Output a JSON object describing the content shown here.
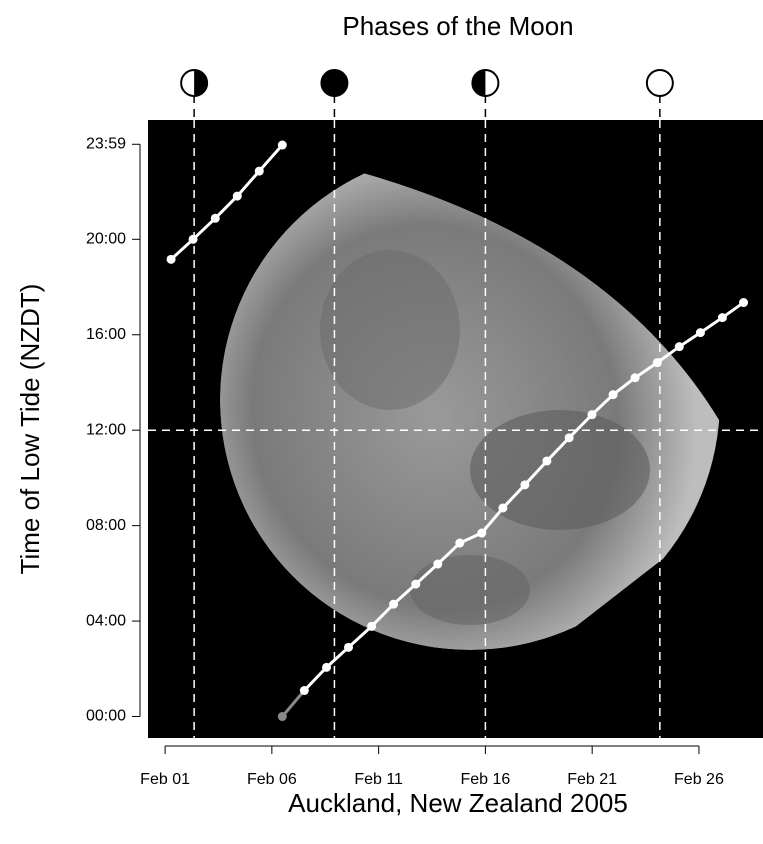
{
  "chart_data": {
    "type": "line",
    "title": "Phases of the Moon",
    "xlabel": "Auckland, New Zealand 2005",
    "ylabel": "Time of Low Tide (NZDT)",
    "series": [
      {
        "color": "#ffffff",
        "x": [
          1.28,
          2.31,
          3.35,
          4.38,
          5.41,
          6.49
        ],
        "values": [
          19.16,
          20.0,
          20.88,
          21.81,
          22.86,
          23.95
        ]
      },
      {
        "color": "#888888",
        "x": [
          6.49
        ],
        "values": [
          0.0
        ]
      },
      {
        "color": "#ffffff",
        "x": [
          7.52,
          8.56,
          9.59,
          10.67,
          11.7,
          12.74,
          13.77,
          14.8,
          15.83,
          16.82,
          17.85,
          18.88,
          19.92,
          20.99,
          21.98,
          23.01,
          24.05,
          25.08,
          26.07,
          27.1,
          28.09
        ],
        "values": [
          1.09,
          2.06,
          2.9,
          3.78,
          4.71,
          5.55,
          6.39,
          7.27,
          7.69,
          8.74,
          9.71,
          10.71,
          11.68,
          12.65,
          13.49,
          14.2,
          14.83,
          15.5,
          16.09,
          16.72,
          17.35
        ]
      }
    ],
    "moon_phases": [
      2.36,
      8.93,
      16.0,
      24.17
    ],
    "hline": 12,
    "xlim": [
      0.2,
      29.0
    ],
    "ylim": [
      -0.9,
      25.0
    ],
    "xticks": [
      {
        "value": 1,
        "label": "Feb 01"
      },
      {
        "value": 6,
        "label": "Feb 06"
      },
      {
        "value": 11,
        "label": "Feb 11"
      },
      {
        "value": 16,
        "label": "Feb 16"
      },
      {
        "value": 21,
        "label": "Feb 21"
      },
      {
        "value": 26,
        "label": "Feb 26"
      }
    ],
    "yticks": [
      {
        "value": 0,
        "label": "00:00"
      },
      {
        "value": 4,
        "label": "04:00"
      },
      {
        "value": 8,
        "label": "08:00"
      },
      {
        "value": 12,
        "label": "12:00"
      },
      {
        "value": 16,
        "label": "16:00"
      },
      {
        "value": 20,
        "label": "20:00"
      },
      {
        "value": 23.983,
        "label": "23:59"
      }
    ]
  }
}
